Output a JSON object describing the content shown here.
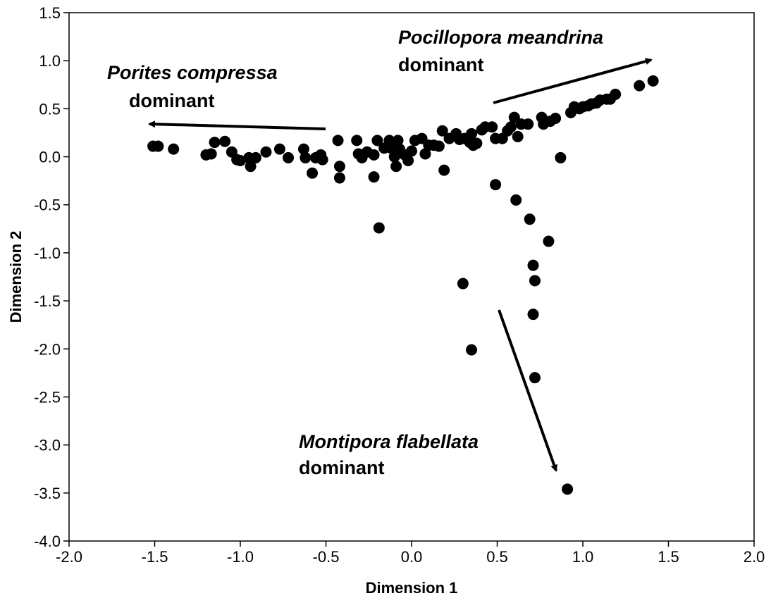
{
  "chart_data": {
    "type": "scatter",
    "xlabel": "Dimension 1",
    "ylabel": "Dimension 2",
    "annotations": [
      {
        "species": "Porites compressa",
        "text": "dominant"
      },
      {
        "species": "Pocillopora meandrina",
        "text": "dominant"
      },
      {
        "species": "Montipora flabellata",
        "text": "dominant"
      }
    ],
    "color": "#000000",
    "xlim": [
      -2.0,
      2.0
    ],
    "xticks": [
      {
        "value": -2.0,
        "label": "-2.0"
      },
      -1.5,
      {
        "value": -1.0,
        "label": "-1.0"
      },
      -0.5,
      {
        "value": 0.0,
        "label": "0.0"
      },
      0.5,
      {
        "value": 1.0,
        "label": "1.0"
      },
      1.5,
      {
        "value": 2.0,
        "label": "2.0"
      }
    ],
    "ylim": [
      -4.0,
      1.5
    ],
    "yticks": [
      1.5,
      {
        "value": 1.0,
        "label": "1.0"
      },
      0.5,
      {
        "value": 0.0,
        "label": "0.0"
      },
      -0.5,
      {
        "value": -1.0,
        "label": "-1.0"
      },
      -1.5,
      {
        "value": -2.0,
        "label": "-2.0"
      },
      -2.5,
      {
        "value": -3.0,
        "label": "-3.0"
      },
      -3.5,
      {
        "value": -4.0,
        "label": "-4.0"
      }
    ],
    "x": [
      -1.51,
      -1.48,
      -1.39,
      -1.2,
      -1.17,
      -1.15,
      -1.09,
      -1.05,
      -1.02,
      -1.0,
      -0.95,
      -0.94,
      -0.91,
      -0.85,
      -0.77,
      -0.72,
      -0.63,
      -0.62,
      -0.58,
      -0.56,
      -0.53,
      -0.52,
      -0.43,
      -0.42,
      -0.42,
      -0.32,
      -0.31,
      -0.29,
      -0.26,
      -0.22,
      -0.22,
      -0.2,
      -0.19,
      -0.16,
      -0.13,
      -0.12,
      -0.1,
      -0.09,
      -0.08,
      -0.07,
      -0.04,
      -0.02,
      0.0,
      0.02,
      0.06,
      0.08,
      0.1,
      0.13,
      0.16,
      0.18,
      0.19,
      0.22,
      0.26,
      0.28,
      0.3,
      0.31,
      0.34,
      0.35,
      0.35,
      0.36,
      0.38,
      0.41,
      0.43,
      0.47,
      0.49,
      0.49,
      0.53,
      0.56,
      0.58,
      0.6,
      0.61,
      0.62,
      0.64,
      0.68,
      0.69,
      0.71,
      0.71,
      0.72,
      0.72,
      0.76,
      0.77,
      0.8,
      0.81,
      0.84,
      0.87,
      0.91,
      0.93,
      0.95,
      0.98,
      1.0,
      1.03,
      1.05,
      1.08,
      1.1,
      1.14,
      1.16,
      1.19,
      1.33,
      1.41
    ],
    "y": [
      0.11,
      0.11,
      0.08,
      0.02,
      0.03,
      0.15,
      0.16,
      0.05,
      -0.03,
      -0.04,
      -0.01,
      -0.1,
      -0.01,
      0.05,
      0.08,
      -0.01,
      0.08,
      -0.01,
      -0.17,
      -0.01,
      0.02,
      -0.03,
      0.17,
      -0.1,
      -0.22,
      0.17,
      0.03,
      -0.01,
      0.05,
      0.02,
      -0.21,
      0.17,
      -0.74,
      0.09,
      0.17,
      0.09,
      0.0,
      -0.1,
      0.17,
      0.08,
      0.02,
      -0.04,
      0.06,
      0.17,
      0.19,
      0.03,
      0.12,
      0.12,
      0.11,
      0.27,
      -0.14,
      0.19,
      0.24,
      0.18,
      -1.32,
      0.19,
      0.15,
      0.24,
      -2.01,
      0.12,
      0.14,
      0.28,
      0.31,
      0.31,
      -0.29,
      0.19,
      0.19,
      0.27,
      0.31,
      0.41,
      -0.45,
      0.21,
      0.34,
      0.34,
      -0.65,
      -1.13,
      -1.64,
      -2.3,
      -1.29,
      0.41,
      0.34,
      -0.88,
      0.37,
      0.4,
      -0.01,
      -3.46,
      0.46,
      0.52,
      0.5,
      0.52,
      0.53,
      0.55,
      0.56,
      0.59,
      0.6,
      0.6,
      0.65,
      0.74,
      0.79
    ]
  }
}
